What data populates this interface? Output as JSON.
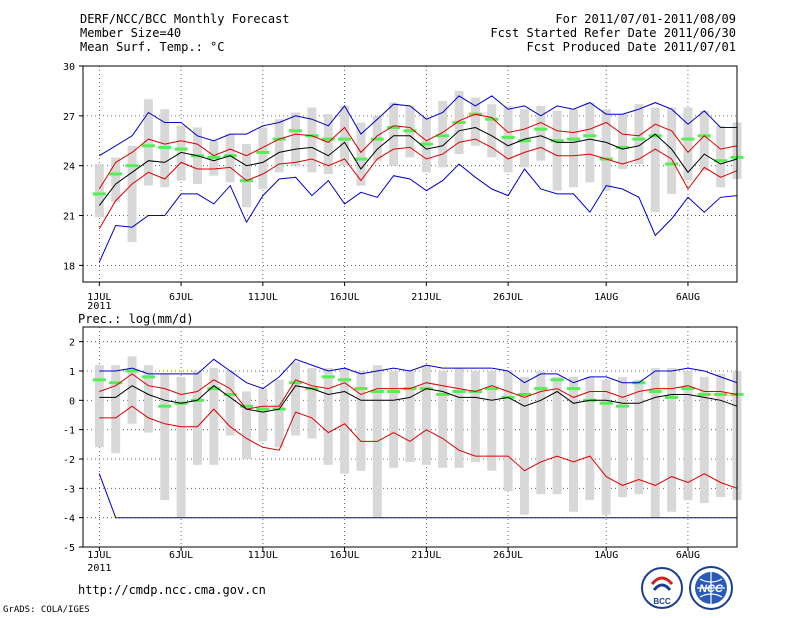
{
  "header": {
    "left": [
      "DERF/NCC/BCC Monthly Forecast",
      "Member Size=40",
      "Mean Surf. Temp.: °C"
    ],
    "right": [
      "For 2011/07/01-2011/08/09",
      "Fcst Started Refer Date 2011/06/30",
      "Fcst Produced Date 2011/07/01"
    ]
  },
  "footer": {
    "url": "http://cmdp.ncc.cma.gov.cn",
    "credit": "GrADS: COLA/IGES"
  },
  "logos": {
    "bcc": "BCC",
    "ncc": "NCC"
  },
  "colors": {
    "box": "#d8d8d8",
    "median": "#55ee55",
    "mean": "#000000",
    "spread": "#dd0000",
    "extreme": "#0000cc",
    "grid": "#444444"
  },
  "chart_data": [
    {
      "type": "line",
      "title": "Mean Surf. Temp.: °C",
      "ylim": [
        17,
        30
      ],
      "yticks": [
        18,
        21,
        24,
        27,
        30
      ],
      "xlim": [
        0,
        40
      ],
      "xtick_days": [
        1,
        6,
        11,
        16,
        21,
        26,
        32,
        37
      ],
      "xtick_labels": [
        "1JUL",
        "6JUL",
        "11JUL",
        "16JUL",
        "21JUL",
        "26JUL",
        "1AUG",
        "6AUG"
      ],
      "year_label": "2011",
      "x": [
        1,
        2,
        3,
        4,
        5,
        6,
        7,
        8,
        9,
        10,
        11,
        12,
        13,
        14,
        15,
        16,
        17,
        18,
        19,
        20,
        21,
        22,
        23,
        24,
        25,
        26,
        27,
        28,
        29,
        30,
        31,
        32,
        33,
        34,
        35,
        36,
        37,
        38,
        39,
        40
      ],
      "series": [
        {
          "name": "max",
          "values": [
            24.6,
            25.2,
            25.8,
            27.2,
            26.6,
            26.6,
            25.8,
            25.5,
            25.9,
            25.9,
            26.4,
            26.6,
            27.0,
            26.8,
            26.4,
            27.6,
            25.9,
            26.8,
            27.7,
            27.6,
            26.8,
            27.2,
            28.2,
            27.6,
            28.2,
            27.4,
            27.6,
            27.0,
            27.6,
            27.4,
            27.8,
            27.1,
            27.1,
            27.4,
            27.8,
            27.4,
            26.5,
            27.3,
            26.3,
            26.3
          ]
        },
        {
          "name": "upper",
          "values": [
            22.6,
            24.2,
            24.8,
            25.6,
            25.3,
            25.5,
            25.3,
            24.6,
            25.0,
            24.6,
            25.1,
            25.6,
            25.9,
            25.8,
            25.4,
            26.3,
            24.8,
            25.8,
            26.4,
            26.3,
            25.5,
            26.0,
            26.7,
            27.1,
            26.9,
            26.0,
            26.2,
            26.6,
            26.1,
            26.0,
            26.2,
            26.6,
            25.9,
            25.8,
            26.5,
            26.1,
            24.8,
            25.8,
            25.0,
            25.2
          ]
        },
        {
          "name": "mean",
          "values": [
            21.6,
            22.9,
            23.6,
            24.3,
            24.2,
            24.8,
            24.6,
            24.3,
            24.6,
            24.0,
            24.2,
            24.8,
            25.0,
            25.1,
            24.6,
            25.4,
            23.8,
            25.0,
            25.8,
            25.8,
            25.0,
            25.2,
            26.1,
            26.3,
            25.8,
            25.2,
            25.6,
            25.8,
            25.4,
            25.4,
            25.6,
            25.4,
            25.0,
            25.2,
            25.9,
            25.0,
            23.6,
            24.7,
            24.1,
            24.4
          ]
        },
        {
          "name": "lower",
          "values": [
            20.2,
            21.9,
            22.9,
            23.6,
            23.2,
            24.2,
            23.8,
            23.8,
            23.9,
            23.1,
            23.5,
            24.1,
            24.2,
            24.4,
            24.0,
            24.4,
            23.1,
            24.4,
            25.0,
            25.1,
            24.4,
            24.7,
            25.4,
            25.6,
            25.1,
            24.4,
            24.8,
            25.1,
            24.6,
            24.6,
            24.7,
            24.4,
            24.1,
            24.4,
            25.0,
            24.4,
            22.6,
            23.9,
            23.3,
            23.7
          ]
        },
        {
          "name": "min",
          "values": [
            18.2,
            20.4,
            20.3,
            21.0,
            21.0,
            22.3,
            22.3,
            21.7,
            22.8,
            20.6,
            22.2,
            23.2,
            23.3,
            22.2,
            23.1,
            21.7,
            22.4,
            22.1,
            23.4,
            23.2,
            22.5,
            23.1,
            24.1,
            23.3,
            22.6,
            22.2,
            23.8,
            22.6,
            22.3,
            22.3,
            21.2,
            22.8,
            22.6,
            22.1,
            19.8,
            20.8,
            22.1,
            21.2,
            22.1,
            22.2
          ]
        }
      ],
      "boxes": {
        "low": [
          20.9,
          21.8,
          19.4,
          22.8,
          22.7,
          23.1,
          22.9,
          23.4,
          23.0,
          21.5,
          22.6,
          23.6,
          24.0,
          23.6,
          23.5,
          24.0,
          22.8,
          24.3,
          24.0,
          24.5,
          23.6,
          23.9,
          24.7,
          25.2,
          24.5,
          23.6,
          23.9,
          24.3,
          22.5,
          22.7,
          23.0,
          22.5,
          23.8,
          24.1,
          21.2,
          22.3,
          23.1,
          23.7,
          22.7,
          23.2
        ],
        "high": [
          24.1,
          24.5,
          25.2,
          28.0,
          27.4,
          26.4,
          26.3,
          25.5,
          25.9,
          25.3,
          26.3,
          26.8,
          27.2,
          27.5,
          27.1,
          27.6,
          26.6,
          27.0,
          27.8,
          27.6,
          26.9,
          27.9,
          28.5,
          28.1,
          27.7,
          27.6,
          27.4,
          27.6,
          27.3,
          27.4,
          27.8,
          27.4,
          27.1,
          27.7,
          27.5,
          27.5,
          27.5,
          27.3,
          26.4,
          26.6
        ],
        "median": [
          22.3,
          23.5,
          24.0,
          25.2,
          25.1,
          25.0,
          24.6,
          24.5,
          24.6,
          23.1,
          24.8,
          25.6,
          26.1,
          25.8,
          25.6,
          25.6,
          24.4,
          25.6,
          26.3,
          26.1,
          25.3,
          25.8,
          26.6,
          27.1,
          26.8,
          25.7,
          25.5,
          26.2,
          25.5,
          25.6,
          25.8,
          24.4,
          25.1,
          25.6,
          25.8,
          24.1,
          25.6,
          25.8,
          24.3,
          24.5
        ]
      }
    },
    {
      "type": "line",
      "title": "Prec.: log(mm/d)",
      "ylim": [
        -5,
        2.5
      ],
      "yticks": [
        -5,
        -4,
        -3,
        -2,
        -1,
        0,
        1,
        2
      ],
      "xlim": [
        0,
        40
      ],
      "xtick_days": [
        1,
        6,
        11,
        16,
        21,
        26,
        32,
        37
      ],
      "xtick_labels": [
        "1JUL",
        "6JUL",
        "11JUL",
        "16JUL",
        "21JUL",
        "26JUL",
        "1AUG",
        "6AUG"
      ],
      "year_label": "2011",
      "x": [
        1,
        2,
        3,
        4,
        5,
        6,
        7,
        8,
        9,
        10,
        11,
        12,
        13,
        14,
        15,
        16,
        17,
        18,
        19,
        20,
        21,
        22,
        23,
        24,
        25,
        26,
        27,
        28,
        29,
        30,
        31,
        32,
        33,
        34,
        35,
        36,
        37,
        38,
        39,
        40
      ],
      "series": [
        {
          "name": "max",
          "values": [
            1.0,
            1.0,
            1.1,
            0.9,
            0.9,
            0.9,
            0.9,
            1.4,
            1.0,
            0.6,
            0.4,
            0.8,
            1.4,
            1.2,
            1.0,
            1.1,
            0.9,
            1.0,
            1.1,
            1.0,
            1.2,
            1.1,
            1.1,
            1.1,
            1.1,
            1.0,
            0.6,
            0.9,
            0.9,
            0.6,
            0.8,
            0.8,
            0.6,
            0.6,
            1.0,
            1.0,
            1.1,
            1.0,
            0.8,
            0.6
          ]
        },
        {
          "name": "upper",
          "values": [
            0.3,
            0.5,
            0.9,
            0.5,
            0.4,
            0.2,
            0.3,
            0.7,
            0.4,
            -0.3,
            -0.2,
            -0.2,
            0.7,
            0.5,
            0.4,
            0.6,
            0.2,
            0.4,
            0.4,
            0.4,
            0.6,
            0.5,
            0.4,
            0.3,
            0.5,
            0.3,
            0.1,
            0.3,
            0.4,
            0.1,
            0.3,
            0.3,
            0.1,
            0.3,
            0.4,
            0.4,
            0.5,
            0.3,
            0.3,
            0.2
          ]
        },
        {
          "name": "mean",
          "values": [
            0.1,
            0.1,
            0.5,
            0.2,
            0.0,
            -0.1,
            0.0,
            0.5,
            0.1,
            -0.3,
            -0.4,
            -0.3,
            0.5,
            0.4,
            0.2,
            0.3,
            0.0,
            0.0,
            0.0,
            0.1,
            0.4,
            0.3,
            0.1,
            0.1,
            0.0,
            0.1,
            -0.2,
            0.0,
            0.3,
            -0.1,
            0.0,
            0.0,
            -0.1,
            -0.1,
            0.1,
            0.2,
            0.2,
            0.1,
            0.0,
            -0.2
          ]
        },
        {
          "name": "lower",
          "values": [
            -0.6,
            -0.6,
            -0.2,
            -0.6,
            -0.8,
            -0.9,
            -0.9,
            -0.3,
            -0.9,
            -1.3,
            -1.6,
            -1.7,
            -0.4,
            -0.6,
            -1.1,
            -0.8,
            -1.4,
            -1.4,
            -1.1,
            -1.4,
            -1.0,
            -1.3,
            -1.7,
            -1.9,
            -1.9,
            -1.9,
            -2.4,
            -2.1,
            -1.9,
            -2.1,
            -1.9,
            -2.6,
            -2.9,
            -2.7,
            -2.9,
            -2.6,
            -2.8,
            -2.5,
            -2.8,
            -3.0
          ]
        },
        {
          "name": "min",
          "values": [
            -2.5,
            -4.0,
            -4.0,
            -4.0,
            -4.0,
            -4.0,
            -4.0,
            -4.0,
            -4.0,
            -4.0,
            -4.0,
            -4.0,
            -4.0,
            -4.0,
            -4.0,
            -4.0,
            -4.0,
            -4.0,
            -4.0,
            -4.0,
            -4.0,
            -4.0,
            -4.0,
            -4.0,
            -4.0,
            -4.0,
            -4.0,
            -4.0,
            -4.0,
            -4.0,
            -4.0,
            -4.0,
            -4.0,
            -4.0,
            -4.0,
            -4.0,
            -4.0,
            -4.0,
            -4.0,
            -4.0
          ]
        }
      ],
      "boxes": {
        "low": [
          -1.6,
          -1.8,
          -0.8,
          -1.1,
          -3.4,
          -4.0,
          -2.2,
          -2.2,
          -1.2,
          -2.0,
          -1.4,
          -1.6,
          -1.2,
          -1.3,
          -2.2,
          -2.5,
          -2.4,
          -4.0,
          -2.3,
          -2.1,
          -2.2,
          -2.3,
          -2.3,
          -2.1,
          -2.4,
          -3.1,
          -3.9,
          -3.2,
          -3.2,
          -3.8,
          -3.4,
          -3.9,
          -3.3,
          -3.2,
          -4.0,
          -3.8,
          -3.4,
          -3.5,
          -3.3,
          -3.4
        ],
        "high": [
          1.2,
          1.2,
          1.5,
          1.2,
          0.9,
          0.8,
          1.0,
          1.1,
          1.0,
          0.3,
          0.4,
          0.7,
          1.3,
          1.1,
          1.1,
          1.1,
          1.0,
          1.2,
          1.0,
          1.0,
          1.2,
          1.0,
          1.1,
          1.0,
          1.0,
          1.0,
          0.8,
          1.0,
          0.8,
          0.8,
          0.8,
          0.7,
          0.8,
          0.7,
          1.1,
          1.1,
          1.0,
          0.8,
          0.9,
          1.0
        ],
        "median": [
          0.7,
          0.6,
          1.0,
          0.8,
          -0.2,
          -0.1,
          0.0,
          0.4,
          0.2,
          -0.2,
          -0.3,
          -0.3,
          0.6,
          0.4,
          0.8,
          0.7,
          0.4,
          0.3,
          0.3,
          0.4,
          0.4,
          0.2,
          0.3,
          0.3,
          0.4,
          0.1,
          0.2,
          0.4,
          0.7,
          0.4,
          0.0,
          -0.1,
          -0.2,
          0.6,
          0.3,
          0.1,
          0.4,
          0.2,
          0.2,
          0.2
        ]
      }
    }
  ]
}
